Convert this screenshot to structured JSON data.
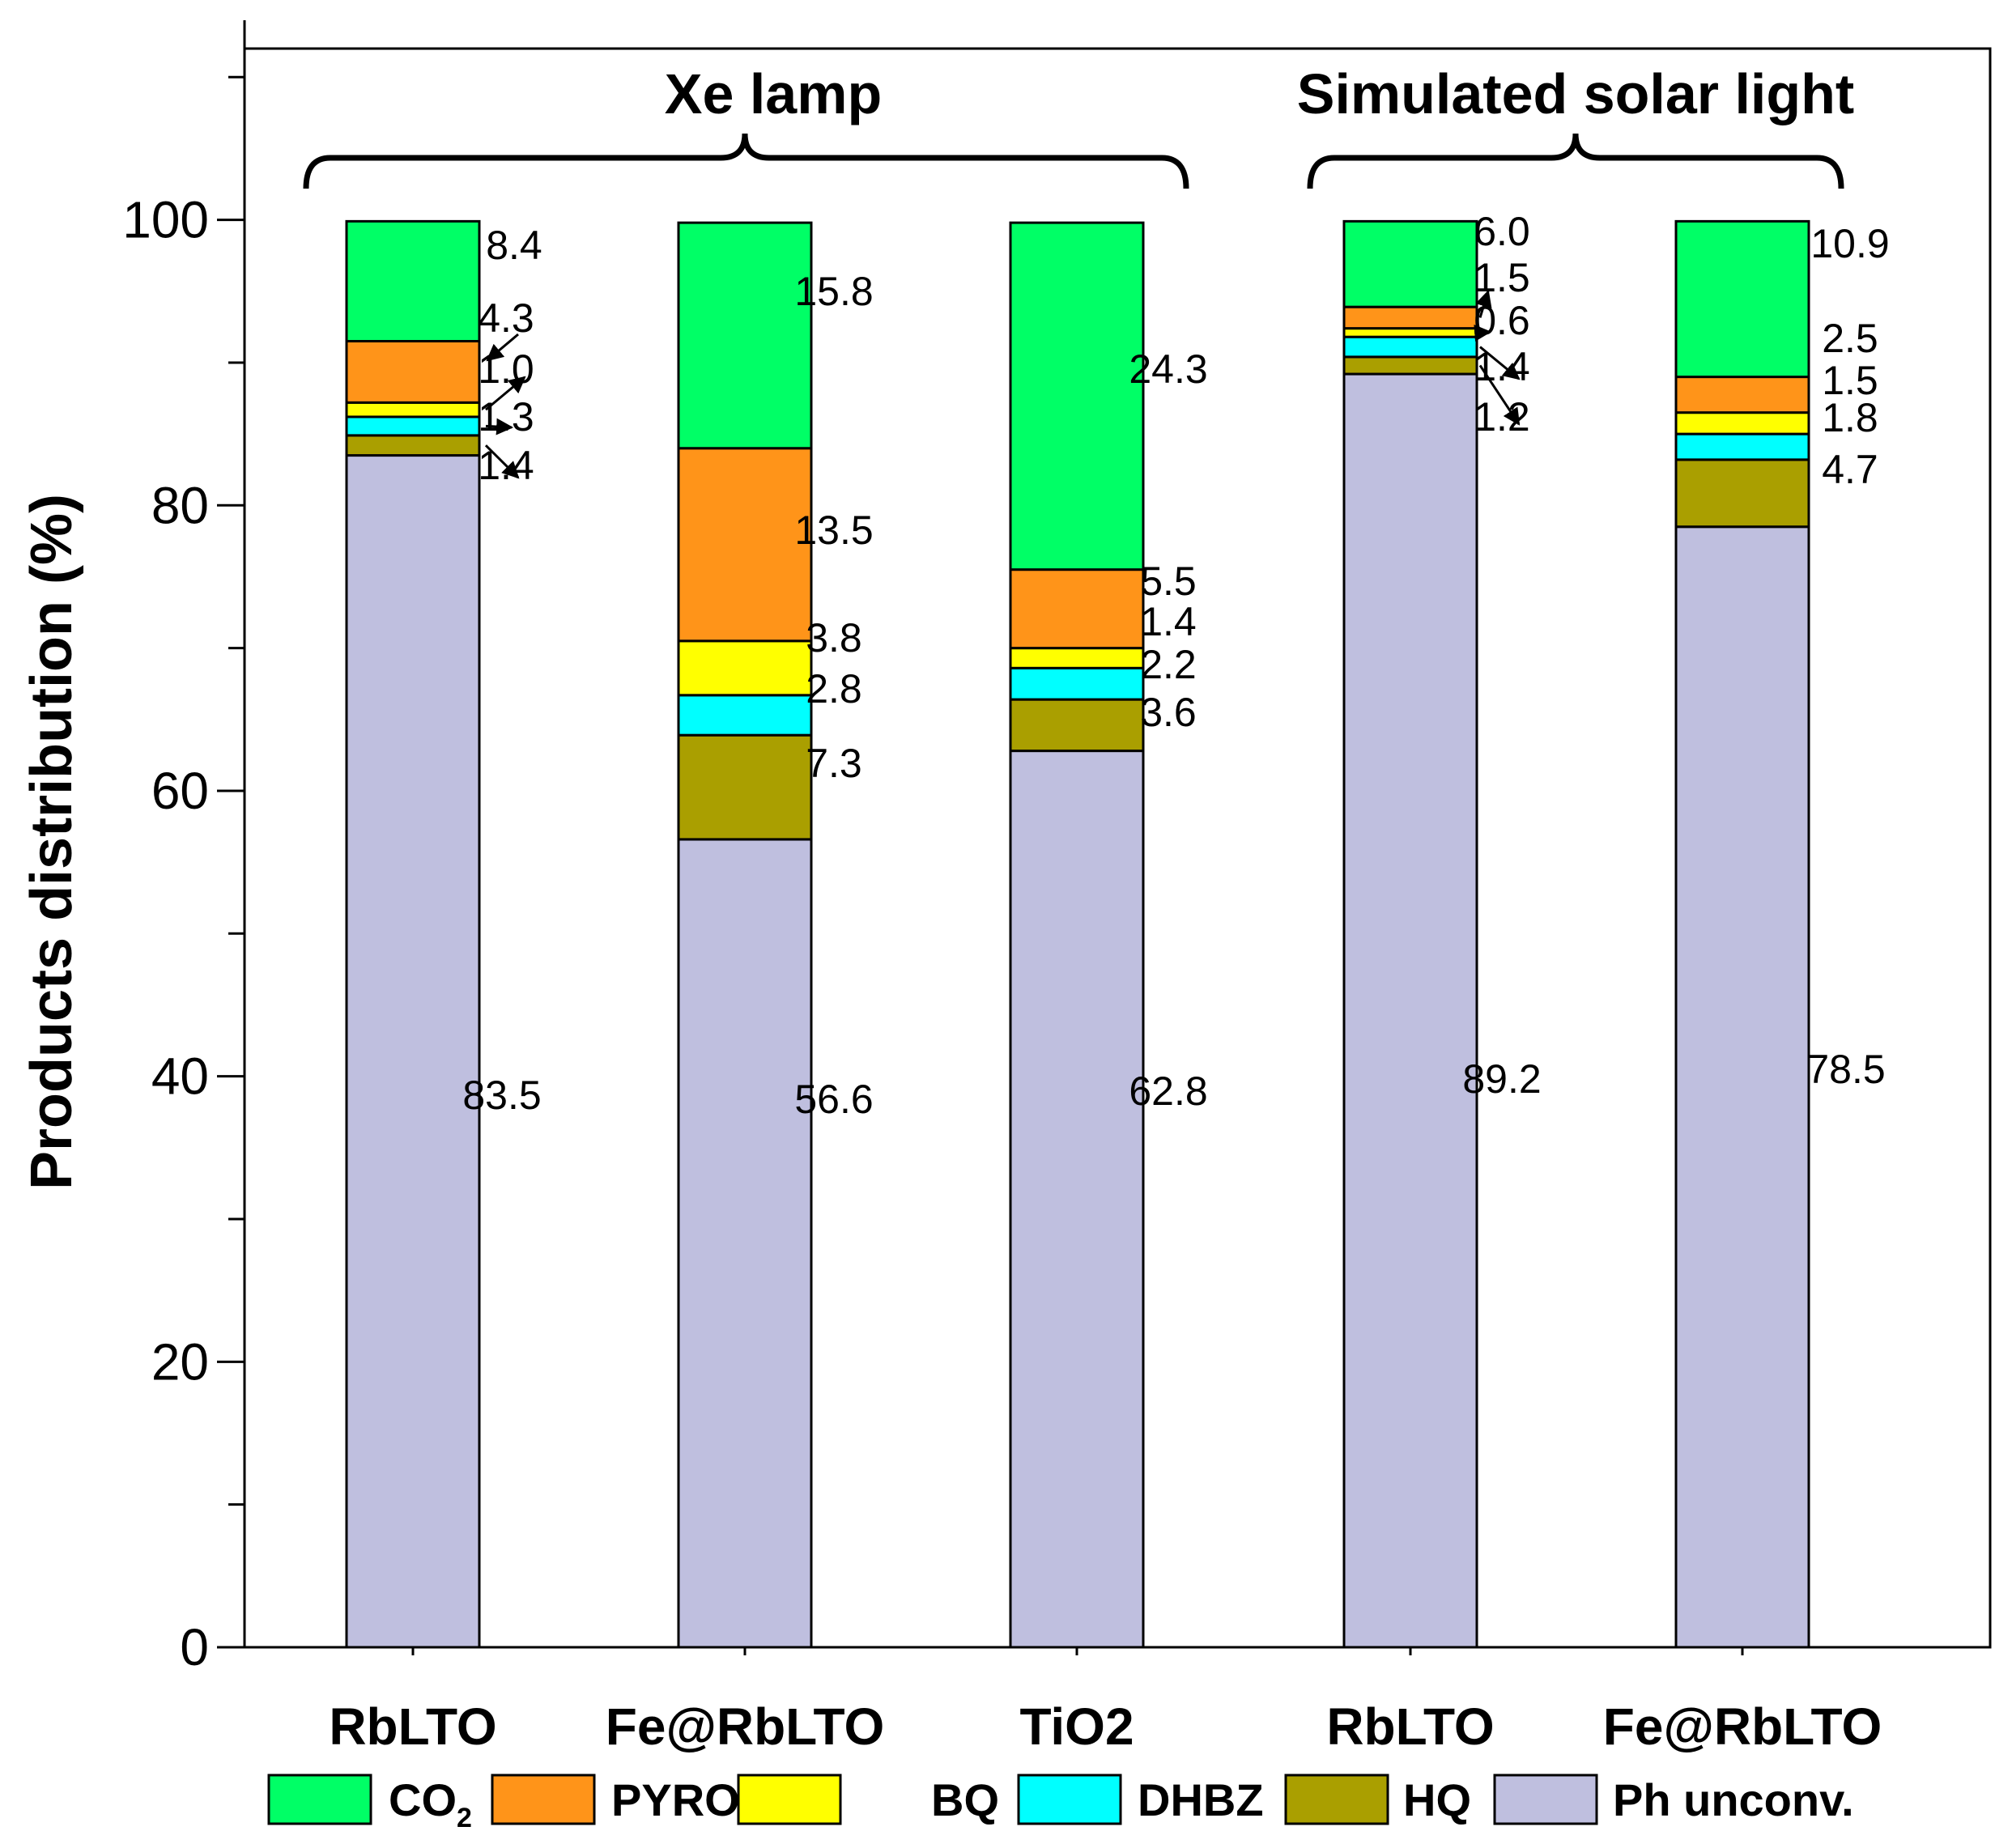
{
  "chart_data": {
    "type": "bar",
    "stacked": true,
    "ylabel": "Products distribution (%)",
    "ylim": [
      0,
      112
    ],
    "yticks": [
      0,
      20,
      40,
      60,
      80,
      100
    ],
    "grid": false,
    "legend_position": "bottom",
    "categories": [
      "RbLTO",
      "Fe@RbLTO",
      "TiO2",
      "RbLTO",
      "Fe@RbLTO"
    ],
    "groups": [
      {
        "label": "Xe lamp",
        "categories": [
          0,
          1,
          2
        ]
      },
      {
        "label": "Simulated solar light",
        "categories": [
          3,
          4
        ]
      }
    ],
    "series": [
      {
        "name": "Ph unconv.",
        "color": "#bfbfdf",
        "values": [
          83.5,
          56.6,
          62.8,
          89.2,
          78.5
        ],
        "labels": [
          "83.5",
          "56.6",
          "62.8",
          "89.2",
          "78.5"
        ]
      },
      {
        "name": "HQ",
        "color": "#aa9f00",
        "values": [
          1.4,
          7.3,
          3.6,
          1.2,
          4.7
        ],
        "labels": [
          "1.4",
          "7.3",
          "3.6",
          "1.2",
          "4.7"
        ]
      },
      {
        "name": "DHBZ",
        "color": "#00ffff",
        "values": [
          1.3,
          2.8,
          2.2,
          1.4,
          1.8
        ],
        "labels": [
          "1.3",
          "2.8",
          "2.2",
          "1.4",
          "1.8"
        ]
      },
      {
        "name": "BQ",
        "color": "#ffff00",
        "values": [
          1.0,
          3.8,
          1.4,
          0.6,
          1.5
        ],
        "labels": [
          "1.0",
          "3.8",
          "1.4",
          "0.6",
          "1.5"
        ]
      },
      {
        "name": "PYROG.",
        "color": "#ff9419",
        "values": [
          4.3,
          13.5,
          5.5,
          1.5,
          2.5
        ],
        "labels": [
          "4.3",
          "13.5",
          "5.5",
          "1.5",
          "2.5"
        ]
      },
      {
        "name": "CO2",
        "legend_text": "CO",
        "legend_sub": "2",
        "color": "#00ff66",
        "values": [
          8.4,
          15.8,
          24.3,
          6.0,
          10.9
        ],
        "labels": [
          "8.4",
          "15.8",
          "24.3",
          "6.0",
          "10.9"
        ]
      }
    ]
  }
}
